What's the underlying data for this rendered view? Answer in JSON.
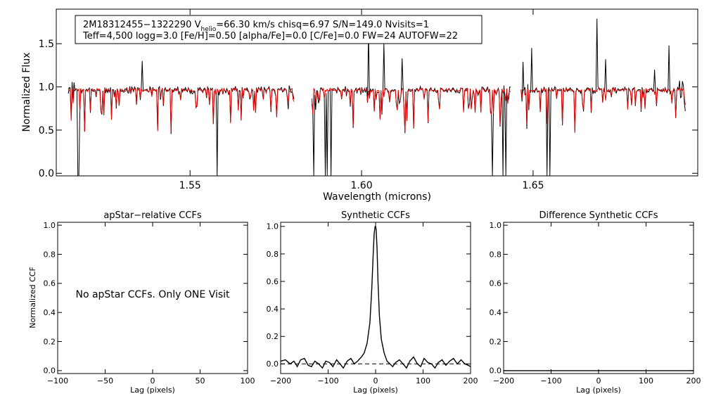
{
  "chart_data": [
    {
      "type": "line",
      "id": "spectrum",
      "title": "",
      "xlabel": "Wavelength (microns)",
      "ylabel": "Normalized Flux",
      "xlim": [
        1.511,
        1.698
      ],
      "ylim": [
        -0.03,
        1.9
      ],
      "xticks": [
        1.55,
        1.6,
        1.65
      ],
      "xtick_labels": [
        "1.55",
        "1.60",
        "1.65"
      ],
      "yticks": [
        0.0,
        0.5,
        1.0,
        1.5
      ],
      "ytick_labels": [
        "0.0",
        "0.5",
        "1.0",
        "1.5"
      ],
      "chips": [
        [
          1.5145,
          1.5805
        ],
        [
          1.5855,
          1.6435
        ],
        [
          1.6465,
          1.6945
        ]
      ],
      "annotation": {
        "line1_prefix": "2M18312455−1322290  V",
        "line1_sub": "helio",
        "line1_suffix": "=66.30 km/s  chisq=6.97  S/N=149.0  Nvisits=1",
        "line2": "Teff=4,500 logg=3.0 [Fe/H]=0.50 [alpha/Fe]=0.0 [C/Fe]=0.0 FW=24 AUTOFW=22"
      },
      "series": [
        {
          "color": "#000000"
        },
        {
          "color": "#e00000"
        }
      ]
    },
    {
      "type": "line",
      "id": "apstar",
      "title": "apStar−relative CCFs",
      "xlabel": "Lag (pixels)",
      "ylabel": "Normalized CCF",
      "xlim": [
        -100,
        100
      ],
      "ylim": [
        -0.02,
        1.02
      ],
      "xticks": [
        -100,
        -50,
        0,
        50,
        100
      ],
      "xtick_labels": [
        "−100",
        "−50",
        "0",
        "50",
        "100"
      ],
      "yticks": [
        0.0,
        0.2,
        0.4,
        0.6,
        0.8,
        1.0
      ],
      "ytick_labels": [
        "0.0",
        "0.2",
        "0.4",
        "0.6",
        "0.8",
        "1.0"
      ],
      "message": "No apStar CCFs.  Only ONE Visit"
    },
    {
      "type": "line",
      "id": "synthetic",
      "title": "Synthetic CCFs",
      "xlabel": "Lag (pixels)",
      "ylabel": "",
      "xlim": [
        -200,
        200
      ],
      "ylim": [
        -0.07,
        1.03
      ],
      "xticks": [
        -200,
        -100,
        0,
        100,
        200
      ],
      "xtick_labels": [
        "−200",
        "−100",
        "0",
        "100",
        "200"
      ],
      "yticks": [
        0.0,
        0.2,
        0.4,
        0.6,
        0.8,
        1.0
      ],
      "ytick_labels": [
        "0.0",
        "0.2",
        "0.4",
        "0.6",
        "0.8",
        "1.0"
      ],
      "series": [
        {
          "style": "solid",
          "x": [
            -200,
            -190,
            -180,
            -172,
            -165,
            -158,
            -150,
            -142,
            -135,
            -128,
            -120,
            -112,
            -105,
            -97,
            -90,
            -82,
            -75,
            -68,
            -60,
            -52,
            -45,
            -38,
            -30,
            -24,
            -18,
            -12,
            -8,
            -5,
            -3,
            -1,
            0,
            1,
            3,
            5,
            8,
            12,
            18,
            24,
            30,
            36,
            42,
            50,
            58,
            65,
            72,
            80,
            88,
            95,
            102,
            110,
            118,
            125,
            132,
            140,
            148,
            156,
            164,
            172,
            180,
            188,
            195,
            200
          ],
          "y": [
            0.02,
            0.03,
            0.0,
            0.02,
            -0.02,
            0.03,
            0.04,
            -0.01,
            -0.02,
            0.02,
            0.0,
            -0.03,
            0.02,
            0.01,
            -0.02,
            0.03,
            0.0,
            -0.03,
            0.02,
            0.04,
            0.0,
            0.02,
            0.05,
            0.08,
            0.15,
            0.3,
            0.55,
            0.8,
            0.95,
            1.0,
            1.0,
            0.98,
            0.85,
            0.6,
            0.35,
            0.18,
            0.08,
            0.02,
            0.0,
            -0.02,
            0.01,
            0.03,
            0.0,
            -0.03,
            0.02,
            0.05,
            0.0,
            -0.02,
            0.04,
            0.01,
            0.0,
            -0.03,
            0.01,
            0.03,
            -0.01,
            0.02,
            0.04,
            0.0,
            0.03,
            0.0,
            -0.01,
            -0.02
          ]
        },
        {
          "style": "dashed",
          "x": [
            -200,
            200
          ],
          "y": [
            0.0,
            0.0
          ]
        }
      ]
    },
    {
      "type": "line",
      "id": "difference",
      "title": "Difference Synthetic CCFs",
      "xlabel": "Lag (pixels)",
      "ylabel": "",
      "xlim": [
        -200,
        200
      ],
      "ylim": [
        -0.02,
        1.02
      ],
      "xticks": [
        -200,
        -100,
        0,
        100,
        200
      ],
      "xtick_labels": [
        "−200",
        "−100",
        "0",
        "100",
        "200"
      ],
      "yticks": [
        0.0,
        0.2,
        0.4,
        0.6,
        0.8,
        1.0
      ],
      "ytick_labels": [
        "0.0",
        "0.2",
        "0.4",
        "0.6",
        "0.8",
        "1.0"
      ],
      "series": [
        {
          "style": "solid",
          "x": [
            -200,
            200
          ],
          "y": [
            0.0,
            0.0
          ]
        }
      ]
    }
  ]
}
